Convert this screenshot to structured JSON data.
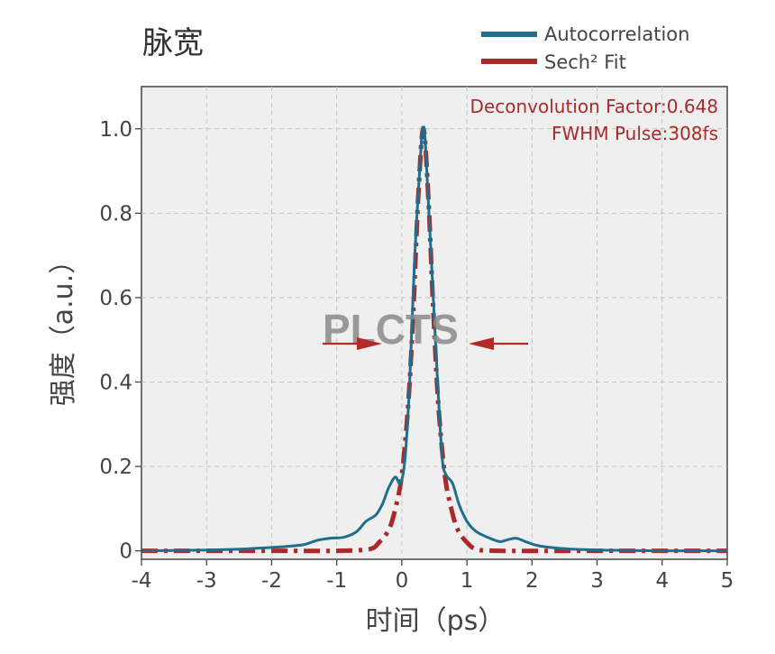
{
  "chart_data": {
    "type": "line",
    "title": "脉宽",
    "xlabel": "时间（ps）",
    "ylabel": "强度（a.u.）",
    "xlim": [
      -4,
      5
    ],
    "ylim": [
      -0.02,
      1.1
    ],
    "x_ticks": [
      "-4",
      "-3",
      "-2",
      "-1",
      "0",
      "1",
      "2",
      "3",
      "4",
      "5"
    ],
    "y_ticks": [
      {
        "value": 0,
        "label": "0"
      },
      {
        "value": 0.2,
        "label": "0.2"
      },
      {
        "value": 0.4,
        "label": "0.4"
      },
      {
        "value": 0.6,
        "label": "0.6"
      },
      {
        "value": 0.8,
        "label": "0.8"
      },
      {
        "value": 1.0,
        "label": "1.0"
      }
    ],
    "grid": true,
    "legend_position": "top-right",
    "series": [
      {
        "name": "Autocorrelation",
        "color": "#1f6e8c",
        "style": "solid",
        "points": [
          [
            -4.0,
            0.0
          ],
          [
            -3.5,
            0.001
          ],
          [
            -3.0,
            0.002
          ],
          [
            -2.5,
            0.004
          ],
          [
            -2.0,
            0.008
          ],
          [
            -1.8,
            0.01
          ],
          [
            -1.5,
            0.015
          ],
          [
            -1.3,
            0.025
          ],
          [
            -1.1,
            0.03
          ],
          [
            -0.9,
            0.032
          ],
          [
            -0.7,
            0.045
          ],
          [
            -0.55,
            0.07
          ],
          [
            -0.4,
            0.085
          ],
          [
            -0.3,
            0.11
          ],
          [
            -0.2,
            0.15
          ],
          [
            -0.1,
            0.175
          ],
          [
            -0.02,
            0.16
          ],
          [
            0.05,
            0.22
          ],
          [
            0.12,
            0.4
          ],
          [
            0.2,
            0.7
          ],
          [
            0.3,
            0.97
          ],
          [
            0.33,
            1.0
          ],
          [
            0.36,
            0.97
          ],
          [
            0.45,
            0.7
          ],
          [
            0.55,
            0.4
          ],
          [
            0.62,
            0.22
          ],
          [
            0.68,
            0.18
          ],
          [
            0.78,
            0.16
          ],
          [
            0.88,
            0.11
          ],
          [
            1.0,
            0.07
          ],
          [
            1.15,
            0.045
          ],
          [
            1.35,
            0.03
          ],
          [
            1.5,
            0.022
          ],
          [
            1.6,
            0.025
          ],
          [
            1.75,
            0.03
          ],
          [
            1.9,
            0.022
          ],
          [
            2.1,
            0.012
          ],
          [
            2.5,
            0.005
          ],
          [
            3.0,
            0.002
          ],
          [
            3.5,
            0.001
          ],
          [
            4.0,
            0.0
          ],
          [
            4.5,
            0.0
          ],
          [
            5.0,
            0.0
          ]
        ]
      },
      {
        "name": "Sech² Fit",
        "color": "#a82a2a",
        "style": "dashdot",
        "points": [
          [
            -4.0,
            0.0
          ],
          [
            -2.0,
            0.0
          ],
          [
            -1.0,
            0.0
          ],
          [
            -0.5,
            0.004
          ],
          [
            -0.35,
            0.02
          ],
          [
            -0.2,
            0.05
          ],
          [
            -0.1,
            0.1
          ],
          [
            0.0,
            0.18
          ],
          [
            0.1,
            0.35
          ],
          [
            0.18,
            0.58
          ],
          [
            0.25,
            0.83
          ],
          [
            0.33,
            1.0
          ],
          [
            0.41,
            0.83
          ],
          [
            0.48,
            0.58
          ],
          [
            0.56,
            0.35
          ],
          [
            0.66,
            0.18
          ],
          [
            0.76,
            0.1
          ],
          [
            0.86,
            0.05
          ],
          [
            1.0,
            0.02
          ],
          [
            1.15,
            0.004
          ],
          [
            1.5,
            0.0
          ],
          [
            3.0,
            0.0
          ],
          [
            5.0,
            0.0
          ]
        ]
      }
    ],
    "annotations": [
      {
        "text": "Deconvolution Factor:0.648",
        "color": "#a82a2a"
      },
      {
        "text": "FWHM Pulse:308fs",
        "color": "#a82a2a"
      }
    ],
    "fwhm_arrows": {
      "left_tail_x": -1.15,
      "left_head_x": -0.3,
      "right_tail_x": 1.0,
      "right_head_x": 0.95,
      "y": 0.5
    },
    "watermark": "PLCTS"
  }
}
